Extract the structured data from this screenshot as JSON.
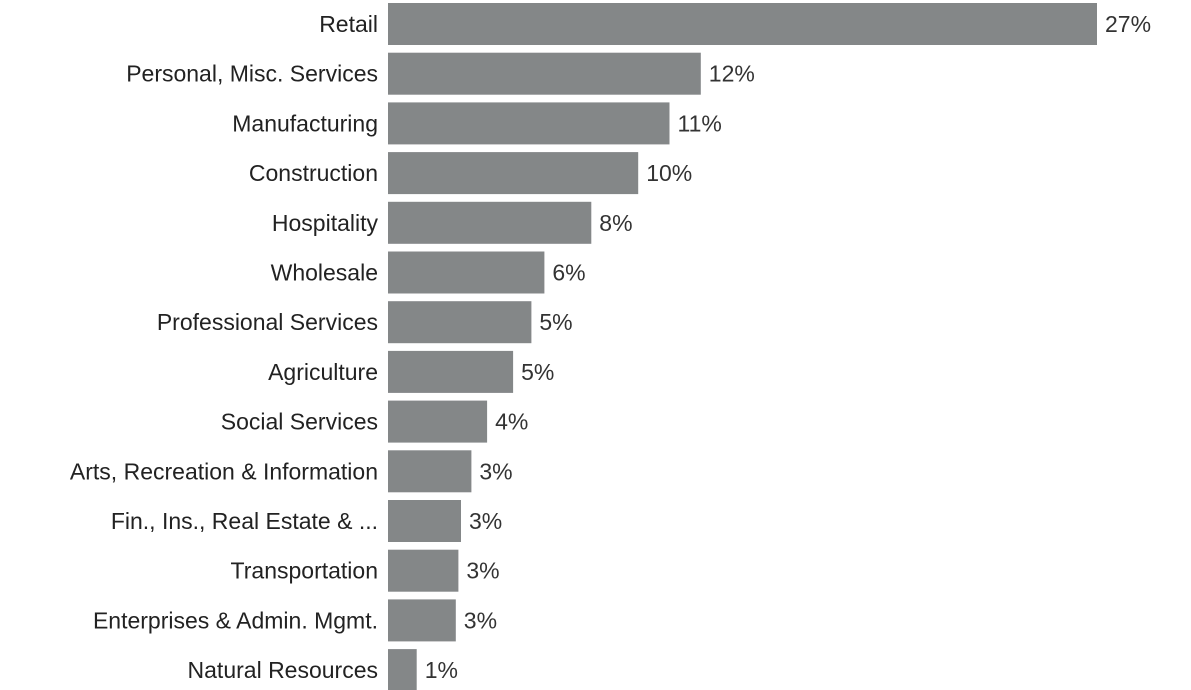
{
  "chart_data": {
    "type": "bar",
    "orientation": "horizontal",
    "categories": [
      "Retail",
      "Personal, Misc. Services",
      "Manufacturing",
      "Construction",
      "Hospitality",
      "Wholesale",
      "Professional Services",
      "Agriculture",
      "Social Services",
      "Arts, Recreation & Information",
      "Fin., Ins., Real Estate & ...",
      "Transportation",
      "Enterprises & Admin. Mgmt.",
      "Natural Resources"
    ],
    "values": [
      27.2,
      12.0,
      10.8,
      9.6,
      7.8,
      6.0,
      5.5,
      4.8,
      3.8,
      3.2,
      2.8,
      2.7,
      2.6,
      1.1
    ],
    "labels": [
      "27%",
      "12%",
      "11%",
      "10%",
      "8%",
      "6%",
      "5%",
      "5%",
      "4%",
      "3%",
      "3%",
      "3%",
      "3%",
      "1%"
    ],
    "xlim": [
      0,
      27.2
    ],
    "grid": false,
    "legend": "none",
    "bar_color": "#848788"
  }
}
